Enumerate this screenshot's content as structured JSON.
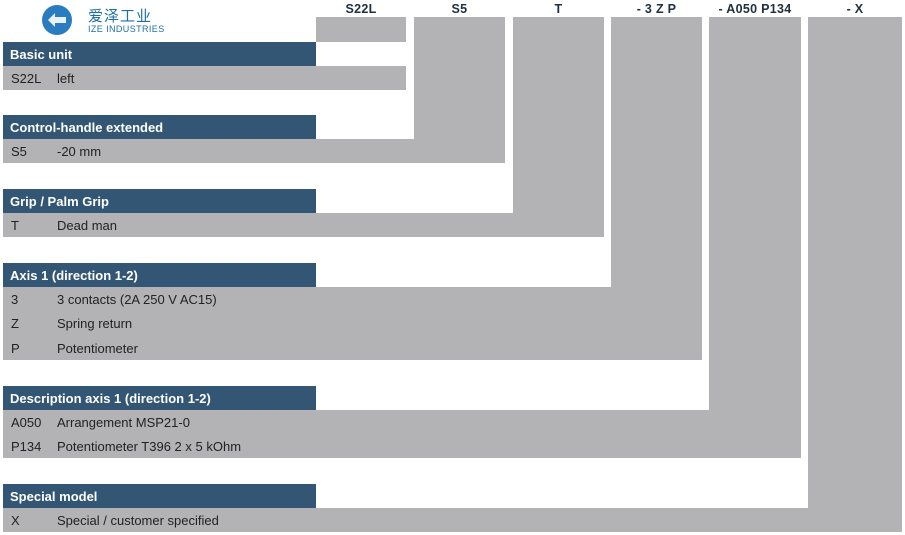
{
  "logo": {
    "name_cn": "爱泽工业",
    "name_en": "IZE INDUSTRIES"
  },
  "columns": [
    "S22L",
    "S5",
    "T",
    "- 3 Z P",
    "- A050 P134",
    "- X"
  ],
  "sections": [
    {
      "title": "Basic unit",
      "rows": [
        {
          "code": "S22L",
          "desc": "left"
        }
      ]
    },
    {
      "title": "Control-handle extended",
      "rows": [
        {
          "code": "S5",
          "desc": "-20 mm"
        }
      ]
    },
    {
      "title": "Grip / Palm Grip",
      "rows": [
        {
          "code": "T",
          "desc": "Dead man"
        }
      ]
    },
    {
      "title": "Axis 1 (direction 1-2)",
      "rows": [
        {
          "code": "3",
          "desc": "3 contacts (2A 250 V AC15)"
        },
        {
          "code": "Z",
          "desc": "Spring return"
        },
        {
          "code": "P",
          "desc": "Potentiometer"
        }
      ]
    },
    {
      "title": "Description axis 1 (direction 1-2)",
      "rows": [
        {
          "code": "A050",
          "desc": "Arrangement MSP21-0"
        },
        {
          "code": "P134",
          "desc": "Potentiometer T396 2 x 5 kOhm"
        }
      ]
    },
    {
      "title": "Special model",
      "rows": [
        {
          "code": "X",
          "desc": "Special / customer specified"
        }
      ]
    }
  ],
  "colors": {
    "header_bg": "#335675",
    "band_gray": "#b3b3b6",
    "logo_blue": "#1e6fa8"
  }
}
